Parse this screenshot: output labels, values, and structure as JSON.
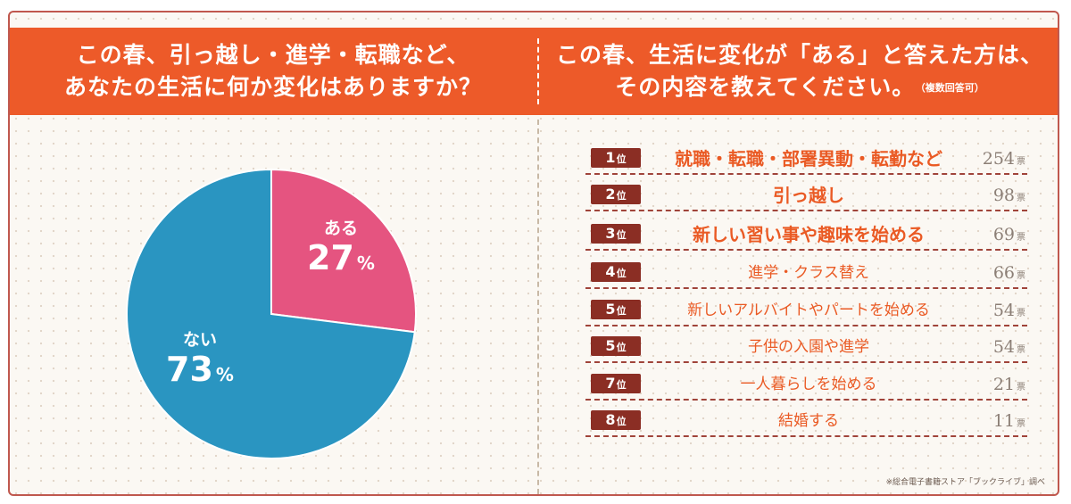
{
  "header": {
    "left_line1": "この春、引っ越し・進学・転職など、",
    "left_line2": "あなたの生活に何か変化はありますか？",
    "right_line1": "この春、生活に変化が「ある」と答えた方は、",
    "right_line2": "その内容を教えてください。",
    "right_note": "（複数回答可）"
  },
  "source": "※総合電子書籍ストア「ブックライブ」調べ",
  "percent_symbol": "%",
  "rank_suffix": "位",
  "vote_unit": "票",
  "colors": {
    "header_bg": "#ed5a29",
    "pie_yes": "#e55480",
    "pie_no": "#2a95c1",
    "rank_badge": "#8b2e24",
    "rank_text": "#ea5a24",
    "value_text": "#8c7f76"
  },
  "chart_data": [
    {
      "type": "pie",
      "slices": [
        {
          "label": "ある",
          "value": 27,
          "color": "#e55480"
        },
        {
          "label": "ない",
          "value": 73,
          "color": "#2a95c1"
        }
      ]
    },
    {
      "type": "table",
      "rows": [
        {
          "rank": "1",
          "label": "就職・転職・部署異動・転勤など",
          "value": 254
        },
        {
          "rank": "2",
          "label": "引っ越し",
          "value": 98
        },
        {
          "rank": "3",
          "label": "新しい習い事や趣味を始める",
          "value": 69
        },
        {
          "rank": "4",
          "label": "進学・クラス替え",
          "value": 66
        },
        {
          "rank": "5",
          "label": "新しいアルバイトやパートを始める",
          "value": 54
        },
        {
          "rank": "5",
          "label": "子供の入園や進学",
          "value": 54
        },
        {
          "rank": "7",
          "label": "一人暮らしを始める",
          "value": 21
        },
        {
          "rank": "8",
          "label": "結婚する",
          "value": 11
        }
      ]
    }
  ]
}
